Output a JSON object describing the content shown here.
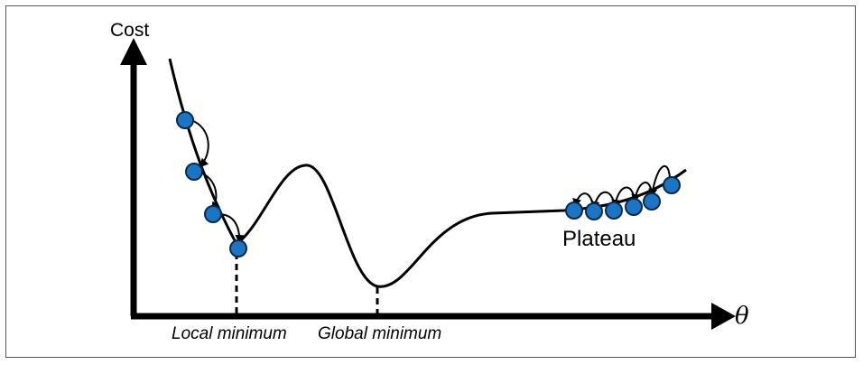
{
  "diagram": {
    "y_axis_label": "Cost",
    "x_axis_label": "θ",
    "local_min_label": "Local minimum",
    "global_min_label": "Global minimum",
    "plateau_label": "Plateau",
    "colors": {
      "curve": "#000000",
      "point_fill": "#1b75c4",
      "point_stroke": "#0a2a4a",
      "frame": "#555555"
    }
  }
}
